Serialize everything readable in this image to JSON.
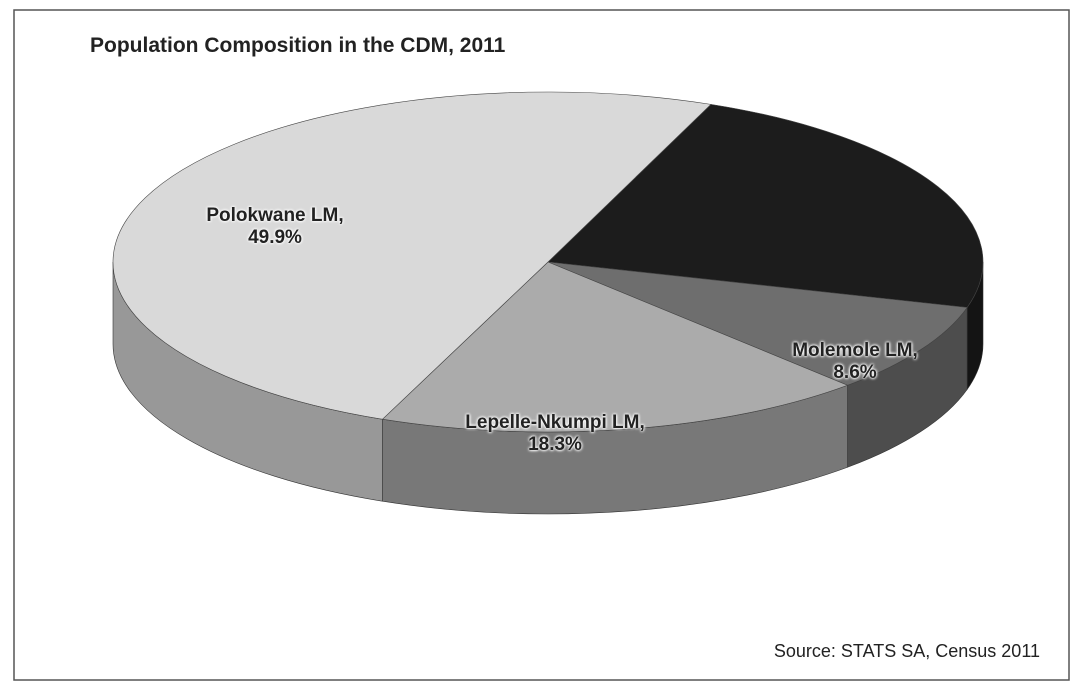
{
  "chart_data": {
    "type": "pie3d",
    "title": "Population Composition in the CDM, 2011",
    "categories": [
      null,
      "Molemole LM, 8.6%",
      "Lepelle-Nkumpi LM, 18.3%",
      "Polokwane LM, 49.9%"
    ],
    "values": [
      23.2,
      8.6,
      18.3,
      49.9
    ],
    "colors": [
      "#1c1c1c",
      "#6e6e6e",
      "#ababab",
      "#d9d9d9"
    ],
    "source": "Source: STATS SA, Census 2011"
  }
}
